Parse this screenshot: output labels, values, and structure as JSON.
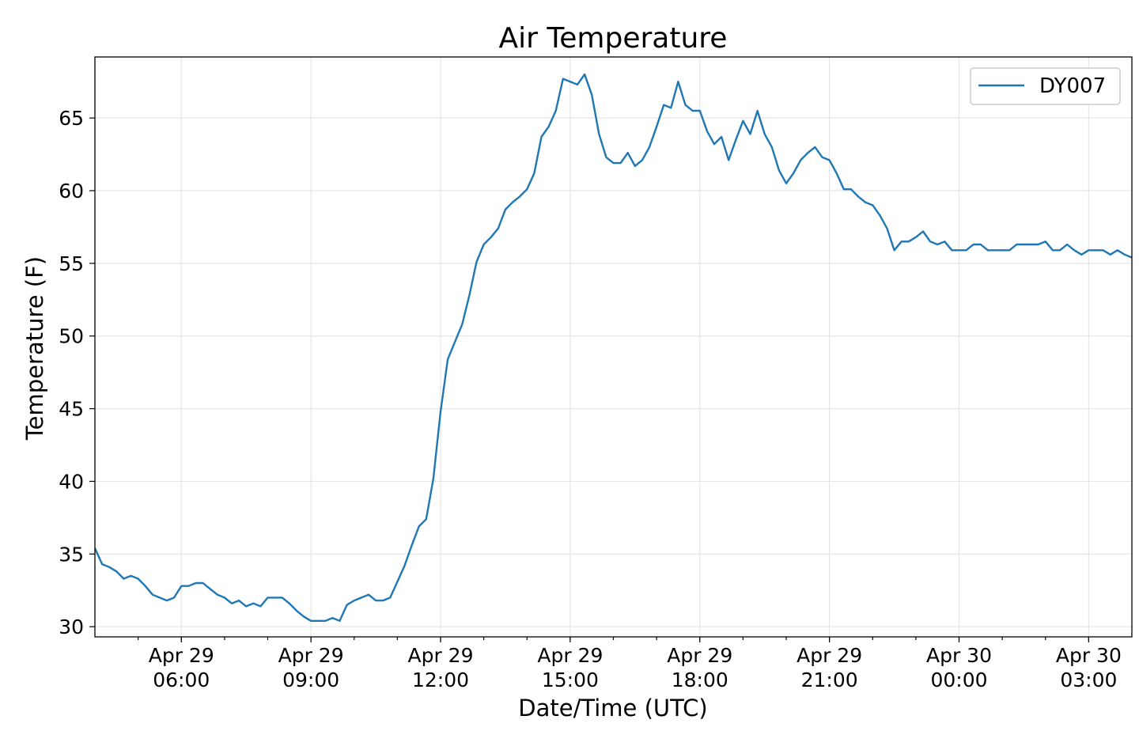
{
  "chart_data": {
    "type": "line",
    "title": "Air Temperature",
    "xlabel": "Date/Time (UTC)",
    "ylabel": "Temperature (F)",
    "xlim": [
      "2019-04-29T04:00",
      "2019-04-30T04:00"
    ],
    "ylim": [
      29.3,
      69.2
    ],
    "yticks": [
      30,
      35,
      40,
      45,
      50,
      55,
      60,
      65
    ],
    "xticks": [
      {
        "t": "2019-04-29T06:00",
        "line1": "Apr 29",
        "line2": "06:00"
      },
      {
        "t": "2019-04-29T09:00",
        "line1": "Apr 29",
        "line2": "09:00"
      },
      {
        "t": "2019-04-29T12:00",
        "line1": "Apr 29",
        "line2": "12:00"
      },
      {
        "t": "2019-04-29T15:00",
        "line1": "Apr 29",
        "line2": "15:00"
      },
      {
        "t": "2019-04-29T18:00",
        "line1": "Apr 29",
        "line2": "18:00"
      },
      {
        "t": "2019-04-29T21:00",
        "line1": "Apr 29",
        "line2": "21:00"
      },
      {
        "t": "2019-04-30T00:00",
        "line1": "Apr 30",
        "line2": "00:00"
      },
      {
        "t": "2019-04-30T03:00",
        "line1": "Apr 30",
        "line2": "03:00"
      }
    ],
    "grid": true,
    "legend_position": "top-right",
    "series": [
      {
        "name": "DY007",
        "color": "#1f77b4",
        "points": [
          [
            "2019-04-29T04:00",
            35.4
          ],
          [
            "2019-04-29T04:10",
            34.3
          ],
          [
            "2019-04-29T04:20",
            34.1
          ],
          [
            "2019-04-29T04:30",
            33.8
          ],
          [
            "2019-04-29T04:40",
            33.3
          ],
          [
            "2019-04-29T04:50",
            33.5
          ],
          [
            "2019-04-29T05:00",
            33.3
          ],
          [
            "2019-04-29T05:10",
            32.8
          ],
          [
            "2019-04-29T05:20",
            32.2
          ],
          [
            "2019-04-29T05:30",
            32.0
          ],
          [
            "2019-04-29T05:40",
            31.8
          ],
          [
            "2019-04-29T05:50",
            32.0
          ],
          [
            "2019-04-29T06:00",
            32.8
          ],
          [
            "2019-04-29T06:10",
            32.8
          ],
          [
            "2019-04-29T06:20",
            33.0
          ],
          [
            "2019-04-29T06:30",
            33.0
          ],
          [
            "2019-04-29T06:40",
            32.6
          ],
          [
            "2019-04-29T06:50",
            32.2
          ],
          [
            "2019-04-29T07:00",
            32.0
          ],
          [
            "2019-04-29T07:10",
            31.6
          ],
          [
            "2019-04-29T07:20",
            31.8
          ],
          [
            "2019-04-29T07:30",
            31.4
          ],
          [
            "2019-04-29T07:40",
            31.6
          ],
          [
            "2019-04-29T07:50",
            31.4
          ],
          [
            "2019-04-29T08:00",
            32.0
          ],
          [
            "2019-04-29T08:10",
            32.0
          ],
          [
            "2019-04-29T08:20",
            32.0
          ],
          [
            "2019-04-29T08:30",
            31.6
          ],
          [
            "2019-04-29T08:40",
            31.1
          ],
          [
            "2019-04-29T08:50",
            30.7
          ],
          [
            "2019-04-29T09:00",
            30.4
          ],
          [
            "2019-04-29T09:10",
            30.4
          ],
          [
            "2019-04-29T09:20",
            30.4
          ],
          [
            "2019-04-29T09:30",
            30.6
          ],
          [
            "2019-04-29T09:40",
            30.4
          ],
          [
            "2019-04-29T09:50",
            31.5
          ],
          [
            "2019-04-29T10:00",
            31.8
          ],
          [
            "2019-04-29T10:10",
            32.0
          ],
          [
            "2019-04-29T10:20",
            32.2
          ],
          [
            "2019-04-29T10:30",
            31.8
          ],
          [
            "2019-04-29T10:40",
            31.8
          ],
          [
            "2019-04-29T10:50",
            32.0
          ],
          [
            "2019-04-29T11:00",
            33.1
          ],
          [
            "2019-04-29T11:10",
            34.2
          ],
          [
            "2019-04-29T11:20",
            35.6
          ],
          [
            "2019-04-29T11:30",
            36.9
          ],
          [
            "2019-04-29T11:40",
            37.4
          ],
          [
            "2019-04-29T11:50",
            40.2
          ],
          [
            "2019-04-29T12:00",
            44.8
          ],
          [
            "2019-04-29T12:10",
            48.4
          ],
          [
            "2019-04-29T12:20",
            49.6
          ],
          [
            "2019-04-29T12:30",
            50.8
          ],
          [
            "2019-04-29T12:40",
            52.8
          ],
          [
            "2019-04-29T12:50",
            55.1
          ],
          [
            "2019-04-29T13:00",
            56.3
          ],
          [
            "2019-04-29T13:10",
            56.8
          ],
          [
            "2019-04-29T13:20",
            57.4
          ],
          [
            "2019-04-29T13:30",
            58.7
          ],
          [
            "2019-04-29T13:40",
            59.2
          ],
          [
            "2019-04-29T13:50",
            59.6
          ],
          [
            "2019-04-29T14:00",
            60.1
          ],
          [
            "2019-04-29T14:10",
            61.2
          ],
          [
            "2019-04-29T14:20",
            63.7
          ],
          [
            "2019-04-29T14:30",
            64.4
          ],
          [
            "2019-04-29T14:40",
            65.5
          ],
          [
            "2019-04-29T14:50",
            67.7
          ],
          [
            "2019-04-29T15:00",
            67.5
          ],
          [
            "2019-04-29T15:10",
            67.3
          ],
          [
            "2019-04-29T15:20",
            68.0
          ],
          [
            "2019-04-29T15:30",
            66.6
          ],
          [
            "2019-04-29T15:40",
            63.9
          ],
          [
            "2019-04-29T15:50",
            62.3
          ],
          [
            "2019-04-29T16:00",
            61.9
          ],
          [
            "2019-04-29T16:10",
            61.9
          ],
          [
            "2019-04-29T16:20",
            62.6
          ],
          [
            "2019-04-29T16:30",
            61.7
          ],
          [
            "2019-04-29T16:40",
            62.1
          ],
          [
            "2019-04-29T16:50",
            63.0
          ],
          [
            "2019-04-29T17:00",
            64.4
          ],
          [
            "2019-04-29T17:10",
            65.9
          ],
          [
            "2019-04-29T17:20",
            65.7
          ],
          [
            "2019-04-29T17:30",
            67.5
          ],
          [
            "2019-04-29T17:40",
            65.9
          ],
          [
            "2019-04-29T17:50",
            65.5
          ],
          [
            "2019-04-29T18:00",
            65.5
          ],
          [
            "2019-04-29T18:10",
            64.1
          ],
          [
            "2019-04-29T18:20",
            63.2
          ],
          [
            "2019-04-29T18:30",
            63.7
          ],
          [
            "2019-04-29T18:40",
            62.1
          ],
          [
            "2019-04-29T18:50",
            63.5
          ],
          [
            "2019-04-29T19:00",
            64.8
          ],
          [
            "2019-04-29T19:10",
            63.9
          ],
          [
            "2019-04-29T19:20",
            65.5
          ],
          [
            "2019-04-29T19:30",
            63.9
          ],
          [
            "2019-04-29T19:40",
            63.0
          ],
          [
            "2019-04-29T19:50",
            61.4
          ],
          [
            "2019-04-29T20:00",
            60.5
          ],
          [
            "2019-04-29T20:10",
            61.2
          ],
          [
            "2019-04-29T20:20",
            62.1
          ],
          [
            "2019-04-29T20:30",
            62.6
          ],
          [
            "2019-04-29T20:40",
            63.0
          ],
          [
            "2019-04-29T20:50",
            62.3
          ],
          [
            "2019-04-29T21:00",
            62.1
          ],
          [
            "2019-04-29T21:10",
            61.2
          ],
          [
            "2019-04-29T21:20",
            60.1
          ],
          [
            "2019-04-29T21:30",
            60.1
          ],
          [
            "2019-04-29T21:40",
            59.6
          ],
          [
            "2019-04-29T21:50",
            59.2
          ],
          [
            "2019-04-29T22:00",
            59.0
          ],
          [
            "2019-04-29T22:10",
            58.3
          ],
          [
            "2019-04-29T22:20",
            57.4
          ],
          [
            "2019-04-29T22:30",
            55.9
          ],
          [
            "2019-04-29T22:40",
            56.5
          ],
          [
            "2019-04-29T22:50",
            56.5
          ],
          [
            "2019-04-29T23:00",
            56.8
          ],
          [
            "2019-04-29T23:10",
            57.2
          ],
          [
            "2019-04-29T23:20",
            56.5
          ],
          [
            "2019-04-29T23:30",
            56.3
          ],
          [
            "2019-04-29T23:40",
            56.5
          ],
          [
            "2019-04-29T23:50",
            55.9
          ],
          [
            "2019-04-30T00:00",
            55.9
          ],
          [
            "2019-04-30T00:10",
            55.9
          ],
          [
            "2019-04-30T00:20",
            56.3
          ],
          [
            "2019-04-30T00:30",
            56.3
          ],
          [
            "2019-04-30T00:40",
            55.9
          ],
          [
            "2019-04-30T00:50",
            55.9
          ],
          [
            "2019-04-30T01:00",
            55.9
          ],
          [
            "2019-04-30T01:10",
            55.9
          ],
          [
            "2019-04-30T01:20",
            56.3
          ],
          [
            "2019-04-30T01:30",
            56.3
          ],
          [
            "2019-04-30T01:40",
            56.3
          ],
          [
            "2019-04-30T01:50",
            56.3
          ],
          [
            "2019-04-30T02:00",
            56.5
          ],
          [
            "2019-04-30T02:10",
            55.9
          ],
          [
            "2019-04-30T02:20",
            55.9
          ],
          [
            "2019-04-30T02:30",
            56.3
          ],
          [
            "2019-04-30T02:40",
            55.9
          ],
          [
            "2019-04-30T02:50",
            55.6
          ],
          [
            "2019-04-30T03:00",
            55.9
          ],
          [
            "2019-04-30T03:10",
            55.9
          ],
          [
            "2019-04-30T03:20",
            55.9
          ],
          [
            "2019-04-30T03:30",
            55.6
          ],
          [
            "2019-04-30T03:40",
            55.9
          ],
          [
            "2019-04-30T03:50",
            55.6
          ],
          [
            "2019-04-30T04:00",
            55.4
          ]
        ]
      }
    ]
  }
}
